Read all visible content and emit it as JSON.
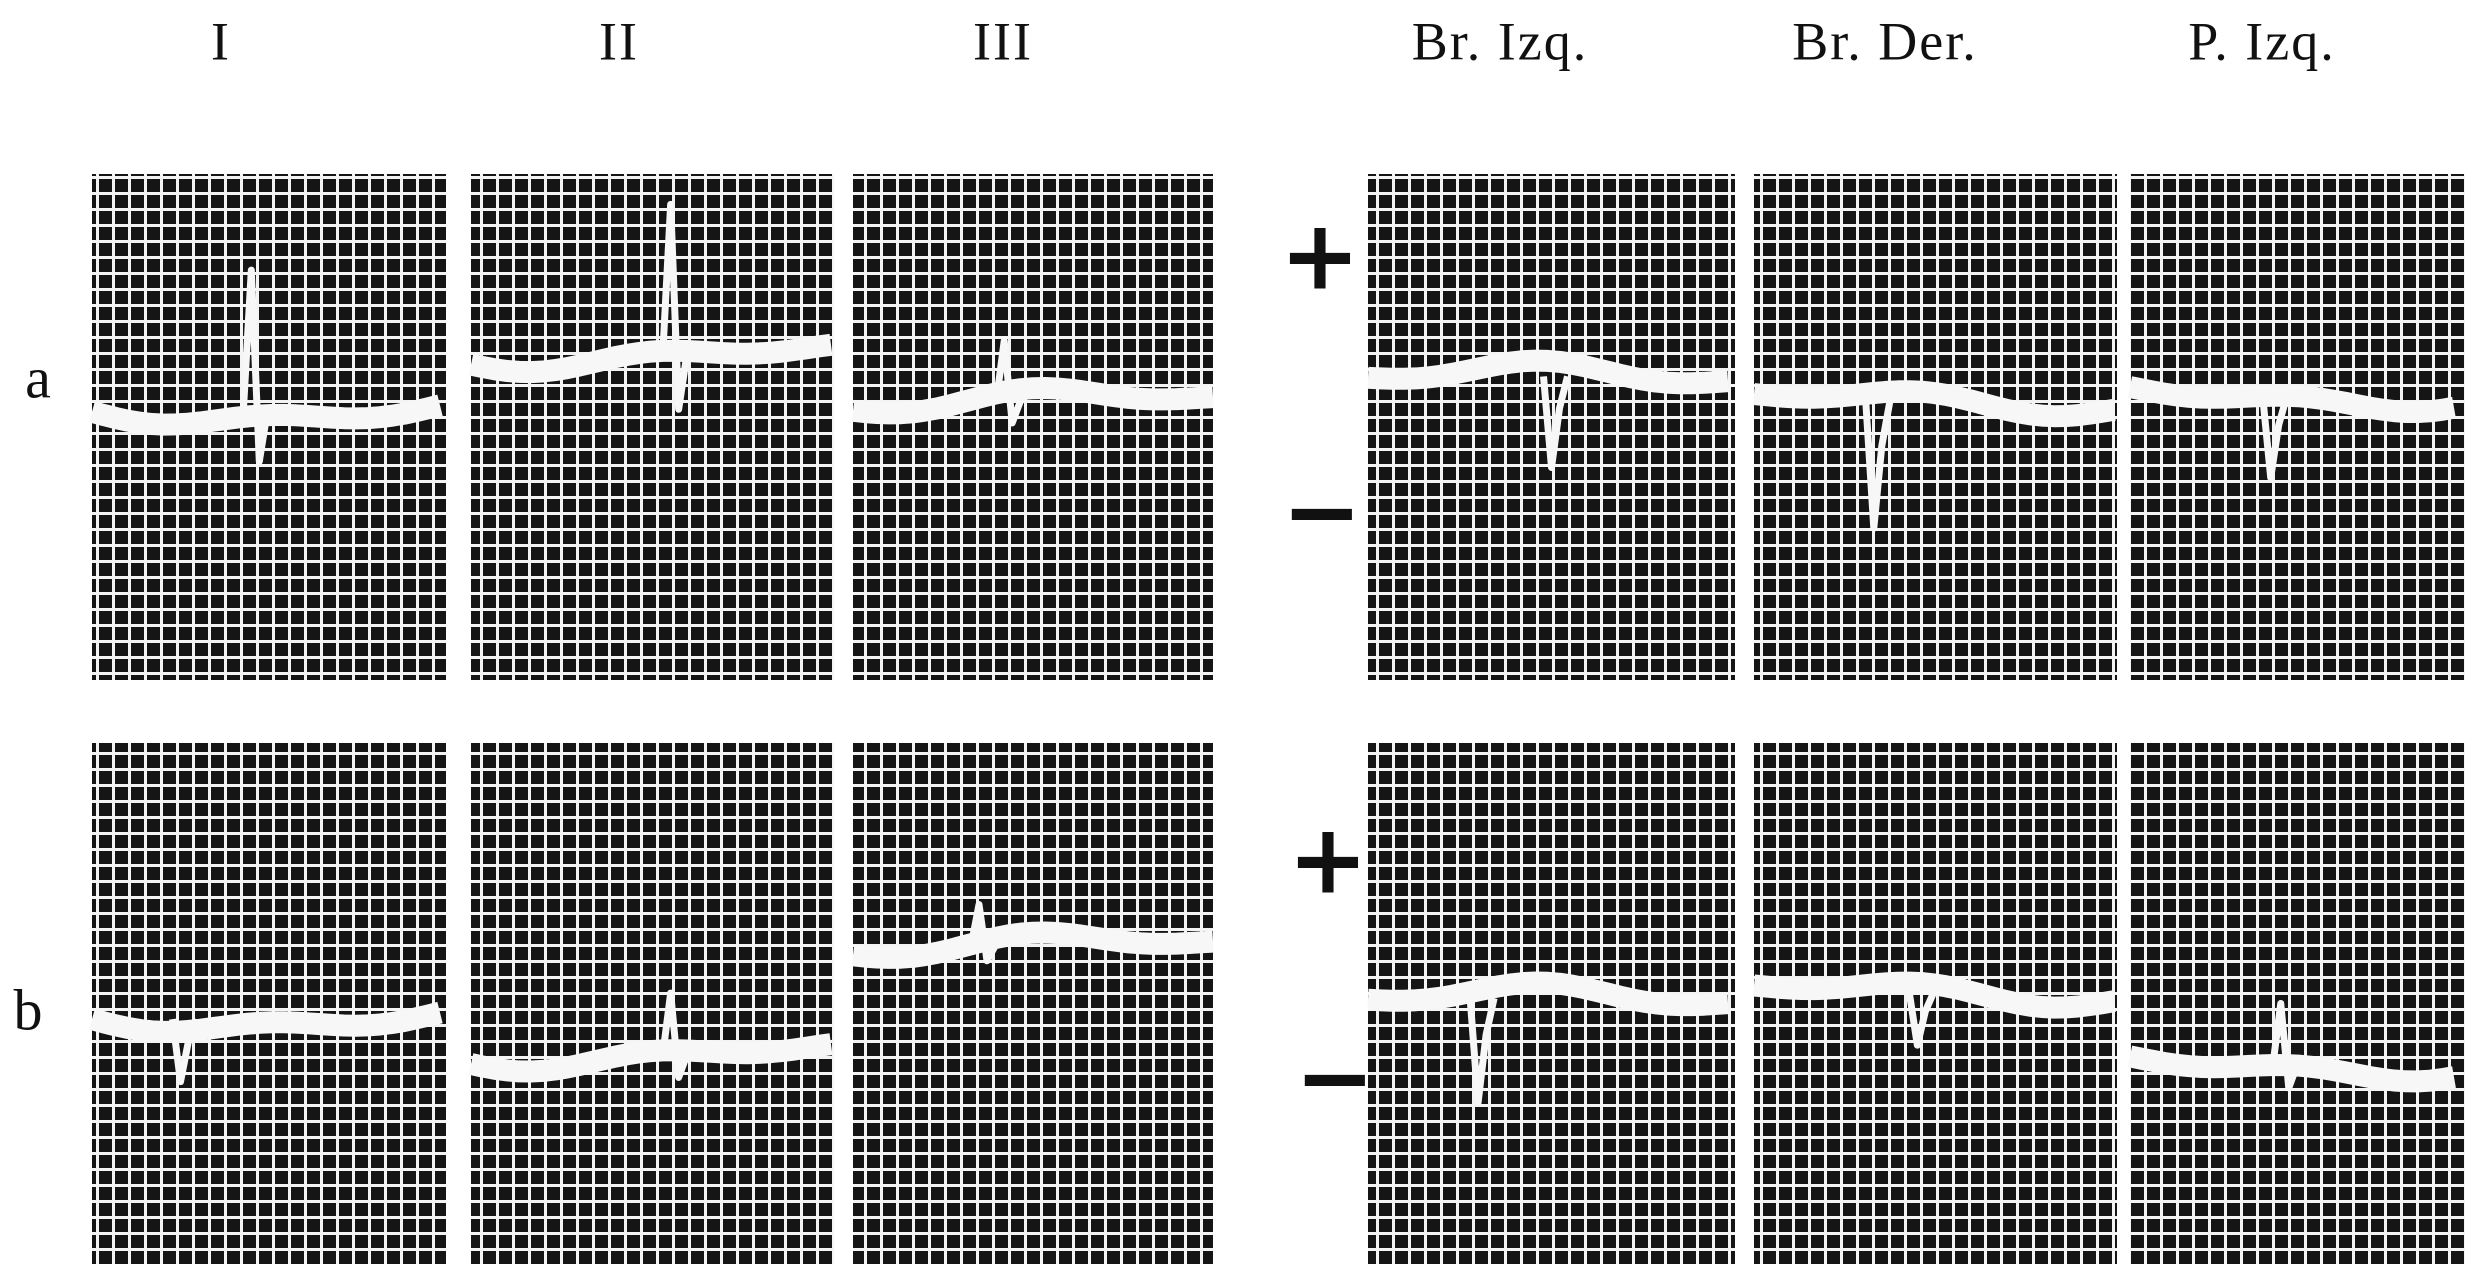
{
  "columns": [
    "I",
    "II",
    "III",
    "Br. Izq.",
    "Br. Der.",
    "P. Izq."
  ],
  "rows": [
    "a",
    "b"
  ],
  "signs": [
    {
      "plus": "+",
      "minus": "−"
    },
    {
      "plus": "+",
      "minus": "−"
    }
  ]
}
